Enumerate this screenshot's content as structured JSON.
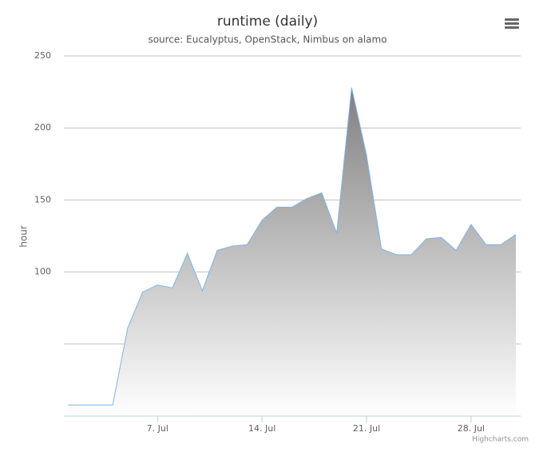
{
  "chart_data": {
    "type": "area",
    "title": "runtime (daily)",
    "subtitle": "source: Eucalyptus, OpenStack, Nimbus on alamo",
    "y_label": "hour",
    "credits": "Highcharts.com",
    "x": [
      1,
      2,
      3,
      4,
      5,
      6,
      7,
      8,
      9,
      10,
      11,
      12,
      13,
      14,
      15,
      16,
      17,
      18,
      19,
      20,
      21,
      22,
      23,
      24,
      25,
      26,
      27,
      28,
      29,
      30,
      31
    ],
    "series": [
      {
        "name": "runtime",
        "color": "#7cb5ec",
        "values": [
          7.7,
          7.7,
          7.7,
          7.7,
          61,
          86,
          91,
          89,
          113,
          87,
          115,
          118,
          119,
          136,
          145,
          145,
          151,
          155,
          127,
          228,
          181,
          116,
          112,
          112,
          123,
          124,
          115,
          133,
          119,
          119,
          126
        ]
      }
    ],
    "xlim": [
      0.73,
      31.32
    ],
    "xticks": [
      {
        "value": 7,
        "label": "7. Jul"
      },
      {
        "value": 14,
        "label": "14. Jul"
      },
      {
        "value": 21,
        "label": "21. Jul"
      },
      {
        "value": 28,
        "label": "28. Jul"
      }
    ],
    "ylim": [
      0,
      250
    ],
    "yticks": [
      100,
      150,
      200,
      250
    ],
    "unlabeled_yticks": [
      50
    ],
    "grid": true
  }
}
